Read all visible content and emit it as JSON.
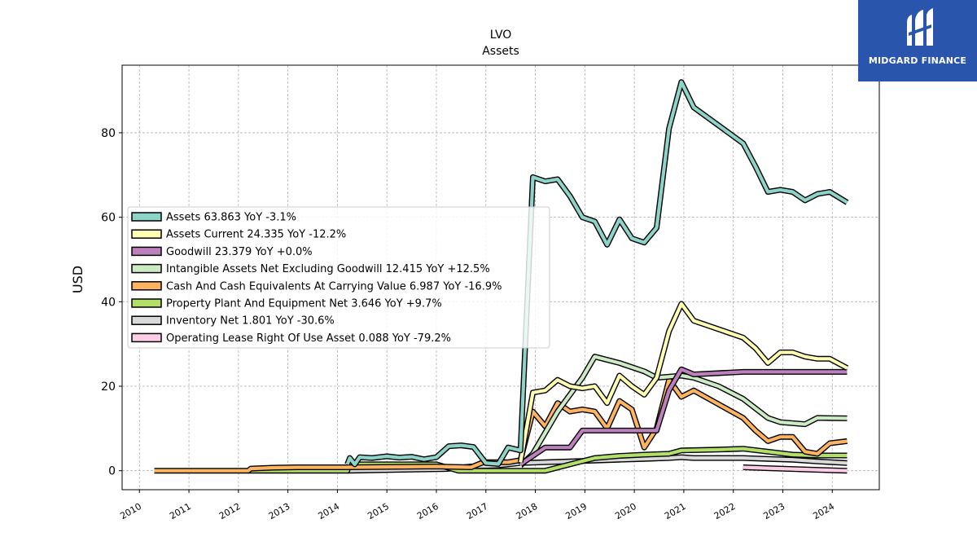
{
  "chart_data": {
    "type": "line",
    "title": "LVO",
    "subtitle": "Assets",
    "ylabel": "USD",
    "xlabel": "",
    "xlim": [
      2009.65,
      2024.95
    ],
    "ylim": [
      -4.5,
      96
    ],
    "yticks": [
      0,
      20,
      40,
      60,
      80
    ],
    "xticks": [
      "2010",
      "2011",
      "2012",
      "2013",
      "2014",
      "2015",
      "2016",
      "2017",
      "2018",
      "2019",
      "2020",
      "2021",
      "2022",
      "2023",
      "2024"
    ],
    "grid": true,
    "legend_position": "center-left",
    "series": [
      {
        "name": "Assets",
        "legend": "Assets  63.863 YoY -3.1%",
        "color": "#8dd3c7",
        "points": [
          [
            2014.2,
            1.5
          ],
          [
            2014.25,
            3.0
          ],
          [
            2014.35,
            1.5
          ],
          [
            2014.45,
            3.2
          ],
          [
            2014.7,
            3.0
          ],
          [
            2015.0,
            3.4
          ],
          [
            2015.25,
            3.1
          ],
          [
            2015.5,
            3.3
          ],
          [
            2015.75,
            2.7
          ],
          [
            2016.0,
            3.2
          ],
          [
            2016.25,
            5.8
          ],
          [
            2016.5,
            6.0
          ],
          [
            2016.75,
            5.6
          ],
          [
            2017.0,
            1.8
          ],
          [
            2017.25,
            1.6
          ],
          [
            2017.45,
            5.5
          ],
          [
            2017.7,
            4.8
          ],
          [
            2017.95,
            69.5
          ],
          [
            2018.2,
            68.5
          ],
          [
            2018.45,
            69.0
          ],
          [
            2018.7,
            65.0
          ],
          [
            2018.95,
            60.0
          ],
          [
            2019.2,
            59.0
          ],
          [
            2019.45,
            53.5
          ],
          [
            2019.7,
            59.5
          ],
          [
            2019.95,
            55.0
          ],
          [
            2020.2,
            54.0
          ],
          [
            2020.45,
            57.5
          ],
          [
            2020.7,
            81.0
          ],
          [
            2020.95,
            92.0
          ],
          [
            2021.2,
            86.0
          ],
          [
            2022.2,
            77.5
          ],
          [
            2022.45,
            72.0
          ],
          [
            2022.7,
            66.0
          ],
          [
            2022.95,
            66.5
          ],
          [
            2023.2,
            66.0
          ],
          [
            2023.45,
            64.0
          ],
          [
            2023.7,
            65.5
          ],
          [
            2023.95,
            66.0
          ],
          [
            2024.3,
            63.5
          ]
        ]
      },
      {
        "name": "Assets Current",
        "legend": "Assets Current  24.335 YoY -12.2%",
        "color": "#ffffb3",
        "points": [
          [
            2017.7,
            2.0
          ],
          [
            2017.95,
            18.5
          ],
          [
            2018.2,
            19.0
          ],
          [
            2018.45,
            21.5
          ],
          [
            2018.7,
            20.0
          ],
          [
            2018.95,
            19.5
          ],
          [
            2019.2,
            20.0
          ],
          [
            2019.45,
            16.0
          ],
          [
            2019.7,
            22.5
          ],
          [
            2019.95,
            20.0
          ],
          [
            2020.2,
            18.0
          ],
          [
            2020.45,
            22.0
          ],
          [
            2020.7,
            33.0
          ],
          [
            2020.95,
            39.5
          ],
          [
            2021.2,
            35.5
          ],
          [
            2022.2,
            31.5
          ],
          [
            2022.45,
            29.0
          ],
          [
            2022.7,
            25.5
          ],
          [
            2022.95,
            28.0
          ],
          [
            2023.2,
            28.0
          ],
          [
            2023.45,
            27.0
          ],
          [
            2023.7,
            26.5
          ],
          [
            2023.95,
            26.5
          ],
          [
            2024.3,
            24.3
          ]
        ]
      },
      {
        "name": "Goodwill",
        "legend": "Goodwill  23.379 YoY +0.0%",
        "color": "#bc80bd",
        "points": [
          [
            2017.7,
            1.5
          ],
          [
            2017.95,
            3.5
          ],
          [
            2018.2,
            5.5
          ],
          [
            2018.7,
            5.5
          ],
          [
            2018.95,
            9.5
          ],
          [
            2019.7,
            9.5
          ],
          [
            2019.95,
            9.5
          ],
          [
            2020.45,
            9.5
          ],
          [
            2020.7,
            19.0
          ],
          [
            2020.95,
            24.0
          ],
          [
            2021.2,
            22.8
          ],
          [
            2022.2,
            23.4
          ],
          [
            2024.3,
            23.4
          ]
        ]
      },
      {
        "name": "Intangible Assets Net Excluding Goodwill",
        "legend": "Intangible Assets Net Excluding Goodwill  12.415 YoY +12.5%",
        "color": "#ccebc5",
        "points": [
          [
            2017.7,
            1.2
          ],
          [
            2017.95,
            4.0
          ],
          [
            2018.45,
            14.0
          ],
          [
            2018.95,
            22.0
          ],
          [
            2019.2,
            27.0
          ],
          [
            2019.7,
            25.5
          ],
          [
            2020.2,
            23.5
          ],
          [
            2020.45,
            22.0
          ],
          [
            2020.95,
            22.5
          ],
          [
            2021.2,
            22.0
          ],
          [
            2021.7,
            20.0
          ],
          [
            2022.2,
            17.0
          ],
          [
            2022.7,
            12.5
          ],
          [
            2022.95,
            11.5
          ],
          [
            2023.45,
            11.0
          ],
          [
            2023.7,
            12.5
          ],
          [
            2024.3,
            12.4
          ]
        ]
      },
      {
        "name": "Cash And Cash Equivalents At Carrying Value",
        "legend": "Cash And Cash Equivalents At Carrying Value  6.987 YoY -16.9%",
        "color": "#fdb462",
        "points": [
          [
            2010.3,
            0.0
          ],
          [
            2012.2,
            0.0
          ],
          [
            2012.25,
            0.5
          ],
          [
            2012.7,
            0.7
          ],
          [
            2013.2,
            0.8
          ],
          [
            2013.7,
            0.8
          ],
          [
            2014.2,
            0.8
          ],
          [
            2016.0,
            1.0
          ],
          [
            2016.7,
            0.8
          ],
          [
            2016.95,
            2.0
          ],
          [
            2017.45,
            2.0
          ],
          [
            2017.7,
            2.5
          ],
          [
            2017.95,
            14.0
          ],
          [
            2018.2,
            10.5
          ],
          [
            2018.45,
            16.0
          ],
          [
            2018.7,
            14.0
          ],
          [
            2018.95,
            14.5
          ],
          [
            2019.2,
            14.0
          ],
          [
            2019.45,
            10.0
          ],
          [
            2019.7,
            16.5
          ],
          [
            2019.95,
            14.5
          ],
          [
            2020.2,
            5.5
          ],
          [
            2020.45,
            10.0
          ],
          [
            2020.7,
            21.5
          ],
          [
            2020.95,
            17.5
          ],
          [
            2021.2,
            19.0
          ],
          [
            2022.2,
            12.5
          ],
          [
            2022.45,
            9.5
          ],
          [
            2022.7,
            7.0
          ],
          [
            2022.95,
            8.0
          ],
          [
            2023.2,
            8.0
          ],
          [
            2023.45,
            4.5
          ],
          [
            2023.7,
            4.0
          ],
          [
            2023.95,
            6.5
          ],
          [
            2024.3,
            7.0
          ]
        ]
      },
      {
        "name": "Property Plant And Equipment Net",
        "legend": "Property Plant And Equipment Net  3.646 YoY +9.7%",
        "color": "#b3de69",
        "points": [
          [
            2012.2,
            0.0
          ],
          [
            2014.2,
            0.0
          ],
          [
            2014.25,
            1.5
          ],
          [
            2015.0,
            1.5
          ],
          [
            2016.0,
            1.5
          ],
          [
            2016.45,
            0.0
          ],
          [
            2017.95,
            0.0
          ],
          [
            2018.2,
            0.0
          ],
          [
            2018.7,
            1.5
          ],
          [
            2019.2,
            3.0
          ],
          [
            2019.7,
            3.5
          ],
          [
            2020.2,
            3.8
          ],
          [
            2020.7,
            4.0
          ],
          [
            2020.95,
            4.8
          ],
          [
            2021.7,
            5.0
          ],
          [
            2022.2,
            5.2
          ],
          [
            2022.7,
            4.5
          ],
          [
            2023.2,
            3.8
          ],
          [
            2023.7,
            3.6
          ],
          [
            2024.3,
            3.6
          ]
        ]
      },
      {
        "name": "Inventory Net",
        "legend": "Inventory Net  1.801 YoY -30.6%",
        "color": "#d9d9d9",
        "points": [
          [
            2014.2,
            0.0
          ],
          [
            2015.2,
            0.2
          ],
          [
            2016.2,
            0.4
          ],
          [
            2016.7,
            1.0
          ],
          [
            2017.2,
            1.2
          ],
          [
            2017.7,
            1.8
          ],
          [
            2018.2,
            2.0
          ],
          [
            2018.7,
            2.2
          ],
          [
            2019.2,
            2.4
          ],
          [
            2019.7,
            2.6
          ],
          [
            2020.2,
            2.8
          ],
          [
            2020.7,
            3.0
          ],
          [
            2020.95,
            3.2
          ],
          [
            2021.2,
            3.0
          ],
          [
            2022.2,
            3.0
          ],
          [
            2022.7,
            2.8
          ],
          [
            2023.2,
            2.6
          ],
          [
            2023.7,
            2.2
          ],
          [
            2024.3,
            1.8
          ]
        ]
      },
      {
        "name": "Operating Lease Right Of Use Asset",
        "legend": "Operating Lease Right Of Use Asset  0.088 YoY -79.2%",
        "color": "#fccde5",
        "points": [
          [
            2022.2,
            0.8
          ],
          [
            2022.7,
            0.6
          ],
          [
            2023.2,
            0.4
          ],
          [
            2023.7,
            0.2
          ],
          [
            2024.3,
            0.0
          ]
        ]
      }
    ]
  },
  "branding": {
    "logo_text": "MIDGARD FINANCE",
    "logo_color": "#2a55ad"
  }
}
